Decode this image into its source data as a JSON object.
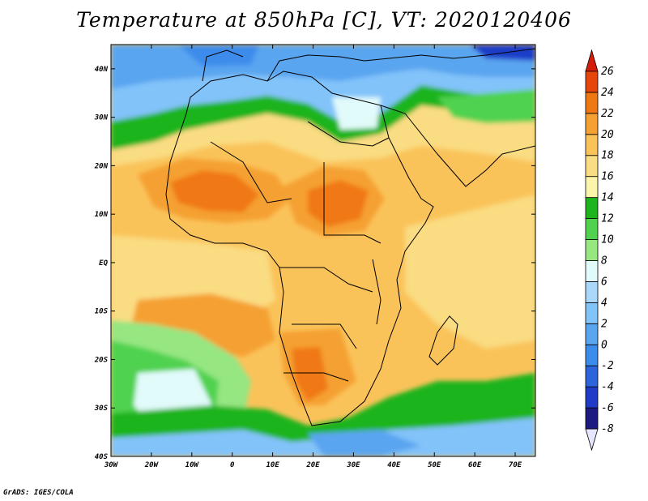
{
  "title": "Temperature at 850hPa [C], VT: 2020120406",
  "credit": "GrADS: IGES/COLA",
  "map": {
    "lon_range": [
      -30,
      75
    ],
    "lat_range": [
      -40,
      45
    ],
    "lon_ticks": [
      {
        "value": -30,
        "label": "30W"
      },
      {
        "value": -20,
        "label": "20W"
      },
      {
        "value": -10,
        "label": "10W"
      },
      {
        "value": 0,
        "label": "0"
      },
      {
        "value": 10,
        "label": "10E"
      },
      {
        "value": 20,
        "label": "20E"
      },
      {
        "value": 30,
        "label": "30E"
      },
      {
        "value": 40,
        "label": "40E"
      },
      {
        "value": 50,
        "label": "50E"
      },
      {
        "value": 60,
        "label": "60E"
      },
      {
        "value": 70,
        "label": "70E"
      }
    ],
    "lat_ticks": [
      {
        "value": 40,
        "label": "40N"
      },
      {
        "value": 30,
        "label": "30N"
      },
      {
        "value": 20,
        "label": "20N"
      },
      {
        "value": 10,
        "label": "10N"
      },
      {
        "value": 0,
        "label": "EQ"
      },
      {
        "value": -10,
        "label": "10S"
      },
      {
        "value": -20,
        "label": "20S"
      },
      {
        "value": -30,
        "label": "30S"
      },
      {
        "value": -40,
        "label": "40S"
      }
    ]
  },
  "colorbar": {
    "levels": [
      -8,
      -6,
      -4,
      -2,
      0,
      2,
      4,
      6,
      8,
      10,
      12,
      14,
      16,
      18,
      20,
      22,
      24,
      26
    ],
    "labels": [
      "-8",
      "-6",
      "-4",
      "-2",
      "0",
      "2",
      "4",
      "6",
      "8",
      "10",
      "12",
      "14",
      "16",
      "18",
      "20",
      "22",
      "24",
      "26"
    ],
    "colors": [
      "#e6e6ff",
      "#1a1a80",
      "#1e3cc8",
      "#2d64dc",
      "#3c8ceb",
      "#5aa5f0",
      "#82c3fa",
      "#aad7fa",
      "#e1fafa",
      "#96e682",
      "#50d250",
      "#1eb41e",
      "#faf5aa",
      "#fadc82",
      "#fac35a",
      "#f5a032",
      "#f07814",
      "#e6460a",
      "#d21e0a"
    ]
  }
}
